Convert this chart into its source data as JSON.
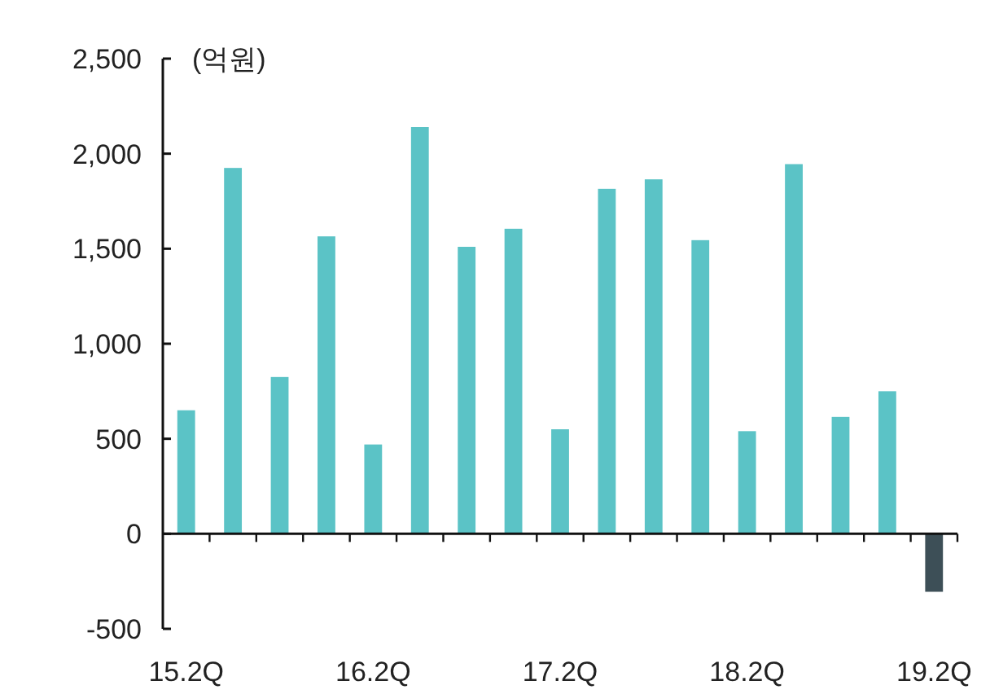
{
  "chart_data": {
    "type": "bar",
    "ylabel": "(억원)",
    "categories": [
      "15.2Q",
      null,
      null,
      null,
      "16.2Q",
      null,
      null,
      null,
      "17.2Q",
      null,
      null,
      null,
      "18.2Q",
      null,
      null,
      null,
      "19.2Q"
    ],
    "values": [
      650,
      1925,
      825,
      1565,
      470,
      2140,
      1510,
      1605,
      550,
      1815,
      1865,
      1545,
      540,
      1945,
      615,
      750,
      -305
    ],
    "colors": [
      "#5bc3c6",
      "#5bc3c6",
      "#5bc3c6",
      "#5bc3c6",
      "#5bc3c6",
      "#5bc3c6",
      "#5bc3c6",
      "#5bc3c6",
      "#5bc3c6",
      "#5bc3c6",
      "#5bc3c6",
      "#5bc3c6",
      "#5bc3c6",
      "#5bc3c6",
      "#5bc3c6",
      "#5bc3c6",
      "#3d4f57"
    ],
    "ylim": [
      -500,
      2500
    ],
    "yticks": [
      {
        "value": -500,
        "label": "-500"
      },
      0,
      {
        "value": 500,
        "label": "500"
      },
      {
        "value": 1000,
        "label": "1,000"
      },
      {
        "value": 1500,
        "label": "1,500"
      },
      {
        "value": 2000,
        "label": "2,000"
      },
      {
        "value": 2500,
        "label": "2,500"
      }
    ]
  }
}
